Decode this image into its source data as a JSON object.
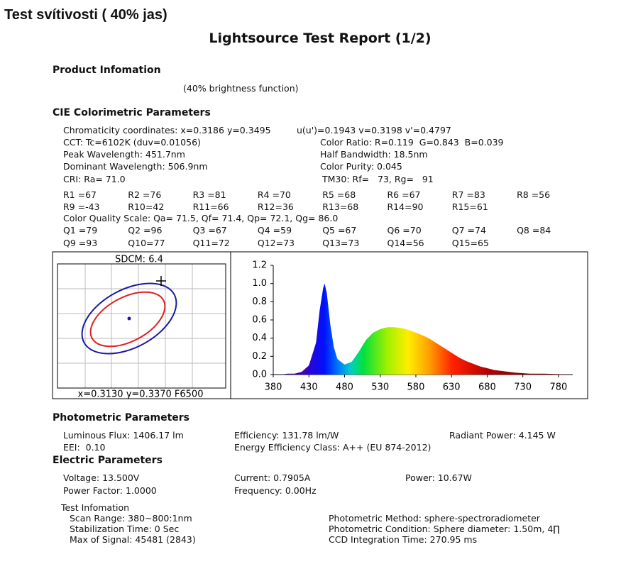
{
  "header": {
    "note": "Test svítivosti ( 40% jas)",
    "title": "Lightsource Test Report (1/2)"
  },
  "product": {
    "heading": "Product Infomation",
    "text": "(40% brightness function)"
  },
  "cie": {
    "heading": "CIE Colorimetric Parameters",
    "rows": [
      [
        "Chromaticity coordinates: x=0.3186 y=0.3495",
        "u(u')=0.1943 v=0.3198 v'=0.4797"
      ],
      [
        "CCT: Tc=6102K (duv=0.01056)",
        "Color Ratio: R=0.119  G=0.843  B=0.039"
      ],
      [
        "Peak Wavelength: 451.7nm",
        "Half Bandwidth: 18.5nm"
      ],
      [
        "Dominant Wavelength: 506.9nm",
        "Color Purity: 0.045"
      ],
      [
        "CRI: Ra= 71.0",
        "TM30: Rf=   73, Rg=   91"
      ]
    ],
    "r_values": [
      [
        "R1 =67",
        "R2 =76",
        "R3 =81",
        "R4 =70",
        "R5 =68",
        "R6 =67",
        "R7 =83",
        "R8 =56"
      ],
      [
        "R9 =-43",
        "R10=42",
        "R11=66",
        "R12=36",
        "R13=68",
        "R14=90",
        "R15=61"
      ]
    ],
    "cqs": "Color Quality Scale: Qa= 71.5, Qf= 71.4, Qp= 72.1, Qg= 86.0",
    "q_values": [
      [
        "Q1 =79",
        "Q2 =96",
        "Q3 =67",
        "Q4 =59",
        "Q5 =67",
        "Q6 =70",
        "Q7 =74",
        "Q8 =84"
      ],
      [
        "Q9 =93",
        "Q10=77",
        "Q11=72",
        "Q12=73",
        "Q13=73",
        "Q14=56",
        "Q15=65"
      ]
    ]
  },
  "chromaticity": {
    "sdcm": "SDCM:  6.4",
    "reference": "x=0.3130 y=0.3370 F6500"
  },
  "chart_data": {
    "type": "area",
    "x": [
      380,
      390,
      400,
      410,
      420,
      430,
      440,
      445,
      450,
      452,
      455,
      460,
      465,
      470,
      480,
      490,
      500,
      510,
      520,
      530,
      540,
      550,
      560,
      570,
      580,
      590,
      600,
      610,
      620,
      630,
      640,
      650,
      660,
      670,
      680,
      690,
      700,
      720,
      740,
      760,
      780,
      800
    ],
    "values": [
      0,
      0,
      0.01,
      0.01,
      0.03,
      0.1,
      0.35,
      0.7,
      0.95,
      1.0,
      0.9,
      0.55,
      0.3,
      0.17,
      0.11,
      0.14,
      0.25,
      0.38,
      0.46,
      0.5,
      0.52,
      0.52,
      0.51,
      0.49,
      0.46,
      0.43,
      0.39,
      0.34,
      0.29,
      0.24,
      0.19,
      0.15,
      0.12,
      0.09,
      0.07,
      0.05,
      0.04,
      0.02,
      0.01,
      0.01,
      0.005,
      0
    ],
    "xlim": [
      380,
      800
    ],
    "xticks": [
      380,
      430,
      480,
      530,
      580,
      630,
      680,
      730,
      780
    ],
    "ylim": [
      0,
      1.2
    ],
    "yticks": [
      {
        "value": 0,
        "label": "0.0"
      },
      0.2,
      0.4,
      0.6,
      0.8,
      {
        "value": 1,
        "label": "1.0"
      },
      1.2
    ]
  },
  "photometric": {
    "heading": "Photometric Parameters",
    "rows": [
      [
        "Luminous Flux: 1406.17 lm",
        "Efficiency: 131.78 lm/W",
        "Radiant Power: 4.145 W"
      ],
      [
        "EEI:  0.10",
        "Energy Efficiency Class: A++ (EU 874-2012)"
      ]
    ]
  },
  "electric": {
    "heading": "Electric Parameters",
    "rows": [
      [
        "Voltage: 13.500V",
        "Current: 0.7905A",
        "Power: 10.67W"
      ],
      [
        "Power Factor: 1.0000",
        "Frequency: 0.00Hz"
      ]
    ]
  },
  "test": {
    "heading": "Test Infomation",
    "rows": [
      [
        "Scan Range: 380~800:1nm",
        "Photometric Method: sphere-spectroradiometer"
      ],
      [
        "Stabilization Time: 0 Sec",
        "Photometric Condition: Sphere diameter: 1.50m, 4∏"
      ],
      [
        "Max of Signal: 45481 (2843)",
        "CCD Integration Time: 270.95 ms"
      ]
    ]
  }
}
